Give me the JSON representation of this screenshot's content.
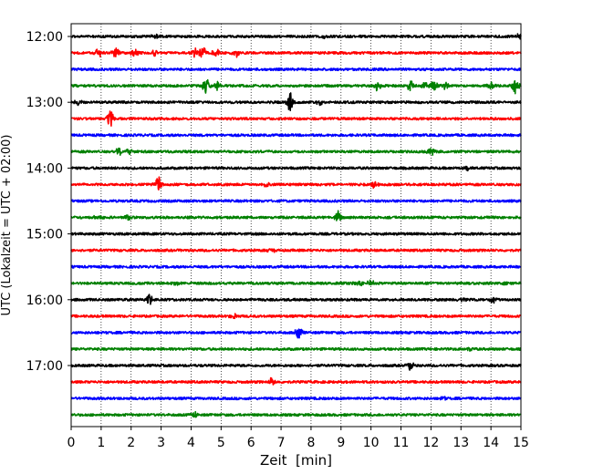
{
  "chart_data": {
    "type": "line",
    "title": "",
    "xlabel": "Zeit  [min]",
    "ylabel": "UTC (Lokalzeit = UTC + 02:00)",
    "xlim": [
      0,
      15
    ],
    "x_ticks": [
      "0",
      "1",
      "2",
      "3",
      "4",
      "5",
      "6",
      "7",
      "8",
      "9",
      "10",
      "11",
      "12",
      "13",
      "14",
      "15"
    ],
    "y_tick_labels": [
      "12:00",
      "13:00",
      "14:00",
      "15:00",
      "16:00",
      "17:00"
    ],
    "grid": "vertical dotted at each minute",
    "legend": "none",
    "series_colors": [
      "#000000",
      "#ff0000",
      "#0000ff",
      "#008000"
    ],
    "traces": [
      {
        "start": "12:00",
        "color": "#000000",
        "events": [
          {
            "t": 2.8,
            "amp": 0.2
          },
          {
            "t": 8.5,
            "amp": 0.2
          },
          {
            "t": 15.0,
            "amp": 0.5
          }
        ]
      },
      {
        "start": "12:15",
        "color": "#ff0000",
        "events": [
          {
            "t": 0.9,
            "amp": 0.5
          },
          {
            "t": 1.5,
            "amp": 0.5
          },
          {
            "t": 2.1,
            "amp": 0.4
          },
          {
            "t": 2.8,
            "amp": 0.5
          },
          {
            "t": 4.1,
            "amp": 0.5
          },
          {
            "t": 4.4,
            "amp": 0.7
          },
          {
            "t": 4.8,
            "amp": 0.5
          },
          {
            "t": 5.5,
            "amp": 0.4
          }
        ]
      },
      {
        "start": "12:30",
        "color": "#0000ff",
        "events": []
      },
      {
        "start": "12:45",
        "color": "#008000",
        "events": [
          {
            "t": 4.5,
            "amp": 0.7
          },
          {
            "t": 4.9,
            "amp": 0.4
          },
          {
            "t": 10.2,
            "amp": 0.5
          },
          {
            "t": 11.3,
            "amp": 0.5
          },
          {
            "t": 11.8,
            "amp": 0.4
          },
          {
            "t": 12.1,
            "amp": 0.5
          },
          {
            "t": 12.5,
            "amp": 0.5
          },
          {
            "t": 14.0,
            "amp": 0.4
          },
          {
            "t": 14.8,
            "amp": 0.8
          }
        ]
      },
      {
        "start": "13:00",
        "color": "#000000",
        "events": [
          {
            "t": 0.2,
            "amp": 0.3
          },
          {
            "t": 7.3,
            "amp": 1.0
          },
          {
            "t": 8.3,
            "amp": 0.3
          }
        ]
      },
      {
        "start": "13:15",
        "color": "#ff0000",
        "events": [
          {
            "t": 1.3,
            "amp": 0.9
          }
        ]
      },
      {
        "start": "13:30",
        "color": "#0000ff",
        "events": []
      },
      {
        "start": "13:45",
        "color": "#008000",
        "events": [
          {
            "t": 1.6,
            "amp": 0.4
          },
          {
            "t": 1.9,
            "amp": 0.3
          },
          {
            "t": 12.0,
            "amp": 0.4
          }
        ]
      },
      {
        "start": "14:00",
        "color": "#000000",
        "events": [
          {
            "t": 13.2,
            "amp": 0.3
          }
        ]
      },
      {
        "start": "14:15",
        "color": "#ff0000",
        "events": [
          {
            "t": 2.9,
            "amp": 0.8
          },
          {
            "t": 6.5,
            "amp": 0.3
          },
          {
            "t": 10.1,
            "amp": 0.3
          }
        ]
      },
      {
        "start": "14:30",
        "color": "#0000ff",
        "events": []
      },
      {
        "start": "14:45",
        "color": "#008000",
        "events": [
          {
            "t": 0.9,
            "amp": 0.3
          },
          {
            "t": 1.9,
            "amp": 0.3
          },
          {
            "t": 8.9,
            "amp": 0.7
          }
        ]
      },
      {
        "start": "15:00",
        "color": "#000000",
        "events": []
      },
      {
        "start": "15:15",
        "color": "#ff0000",
        "events": [
          {
            "t": 6.7,
            "amp": 0.2
          }
        ]
      },
      {
        "start": "15:30",
        "color": "#0000ff",
        "events": []
      },
      {
        "start": "15:45",
        "color": "#008000",
        "events": [
          {
            "t": 3.5,
            "amp": 0.3
          },
          {
            "t": 9.6,
            "amp": 0.3
          },
          {
            "t": 10.0,
            "amp": 0.3
          },
          {
            "t": 14.5,
            "amp": 0.2
          }
        ]
      },
      {
        "start": "16:00",
        "color": "#000000",
        "events": [
          {
            "t": 2.6,
            "amp": 0.6
          },
          {
            "t": 13.0,
            "amp": 0.3
          },
          {
            "t": 14.1,
            "amp": 0.3
          }
        ]
      },
      {
        "start": "16:15",
        "color": "#ff0000",
        "events": [
          {
            "t": 5.4,
            "amp": 0.3
          }
        ]
      },
      {
        "start": "16:30",
        "color": "#0000ff",
        "events": [
          {
            "t": 7.6,
            "amp": 0.8
          }
        ]
      },
      {
        "start": "16:45",
        "color": "#008000",
        "events": [
          {
            "t": 13.3,
            "amp": 0.2
          }
        ]
      },
      {
        "start": "17:00",
        "color": "#000000",
        "events": [
          {
            "t": 11.3,
            "amp": 0.5
          }
        ]
      },
      {
        "start": "17:15",
        "color": "#ff0000",
        "events": [
          {
            "t": 6.7,
            "amp": 0.4
          }
        ]
      },
      {
        "start": "17:30",
        "color": "#0000ff",
        "events": [
          {
            "t": 12.4,
            "amp": 0.2
          }
        ]
      },
      {
        "start": "17:45",
        "color": "#008000",
        "events": [
          {
            "t": 4.1,
            "amp": 0.3
          }
        ]
      }
    ]
  }
}
